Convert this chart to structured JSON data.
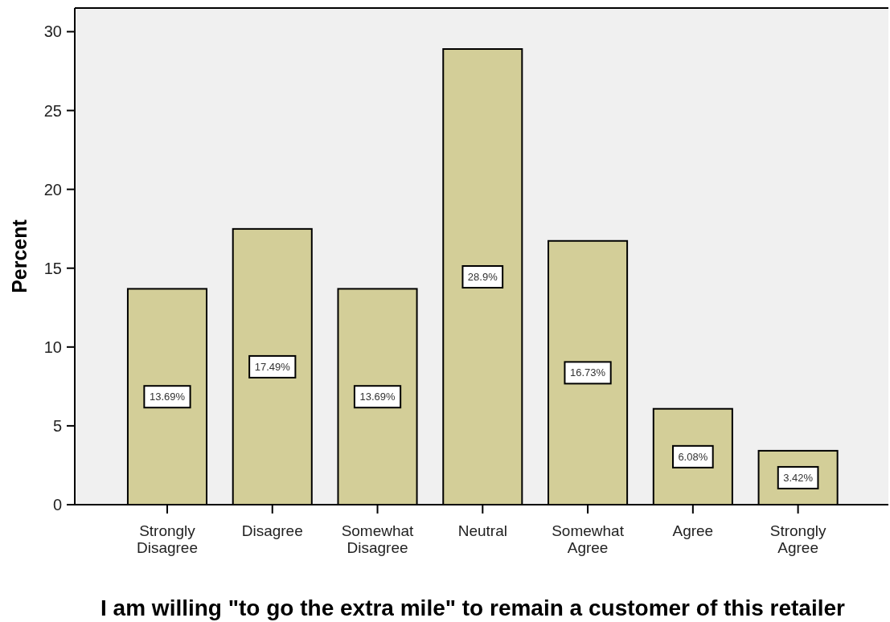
{
  "chart_data": {
    "type": "bar",
    "xlabel": "I am willing \"to go the extra mile\" to remain a customer of this retailer",
    "ylabel": "Percent",
    "categories": [
      "Strongly Disagree",
      "Disagree",
      "Somewhat Disagree",
      "Neutral",
      "Somewhat Agree",
      "Agree",
      "Strongly Agree"
    ],
    "values": [
      13.69,
      17.49,
      13.69,
      28.9,
      16.73,
      6.08,
      3.42
    ],
    "value_labels": [
      "13.69%",
      "17.49%",
      "13.69%",
      "28.9%",
      "16.73%",
      "6.08%",
      "3.42%"
    ],
    "color": "#d3ce98",
    "ylim": [
      0,
      31.5
    ],
    "yticks": [
      0,
      5,
      10,
      15,
      20,
      25,
      30
    ]
  }
}
